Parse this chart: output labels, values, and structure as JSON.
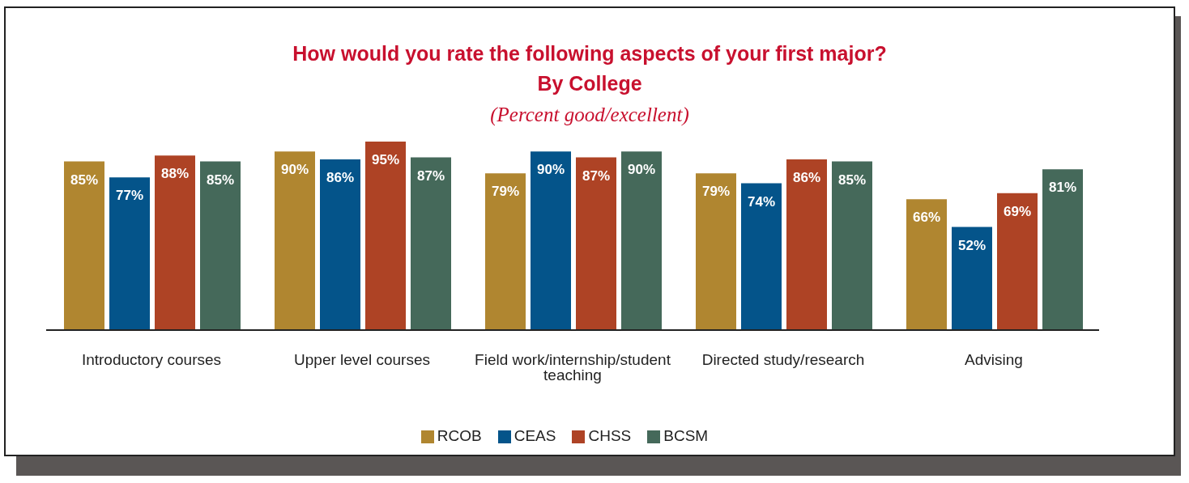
{
  "chart_data": {
    "type": "bar",
    "title": "How would you rate the following aspects of your first major?\nBy College",
    "subtitle": "(Percent good/excellent)",
    "categories": [
      "Introductory courses",
      "Upper level courses",
      "Field work/internship/student teaching",
      "Directed study/research",
      "Advising"
    ],
    "series": [
      {
        "name": "RCOB",
        "color": "#b08630",
        "values": [
          85,
          90,
          79,
          79,
          66
        ],
        "value_labels": [
          "85%",
          "90%",
          "79%",
          "79%",
          "66%"
        ]
      },
      {
        "name": "CEAS",
        "color": "#04548a",
        "values": [
          77,
          86,
          90,
          74,
          52
        ],
        "value_labels": [
          "77%",
          "86%",
          "90%",
          "74%",
          "52%"
        ]
      },
      {
        "name": "CHSS",
        "color": "#ae4325",
        "values": [
          88,
          95,
          87,
          86,
          69
        ],
        "value_labels": [
          "88%",
          "95%",
          "87%",
          "86%",
          "69%"
        ]
      },
      {
        "name": "BCSM",
        "color": "#45695a",
        "values": [
          85,
          87,
          90,
          85,
          81
        ],
        "value_labels": [
          "85%",
          "87%",
          "90%",
          "85%",
          "81%"
        ]
      }
    ],
    "legend": "bottom",
    "grid": false
  }
}
